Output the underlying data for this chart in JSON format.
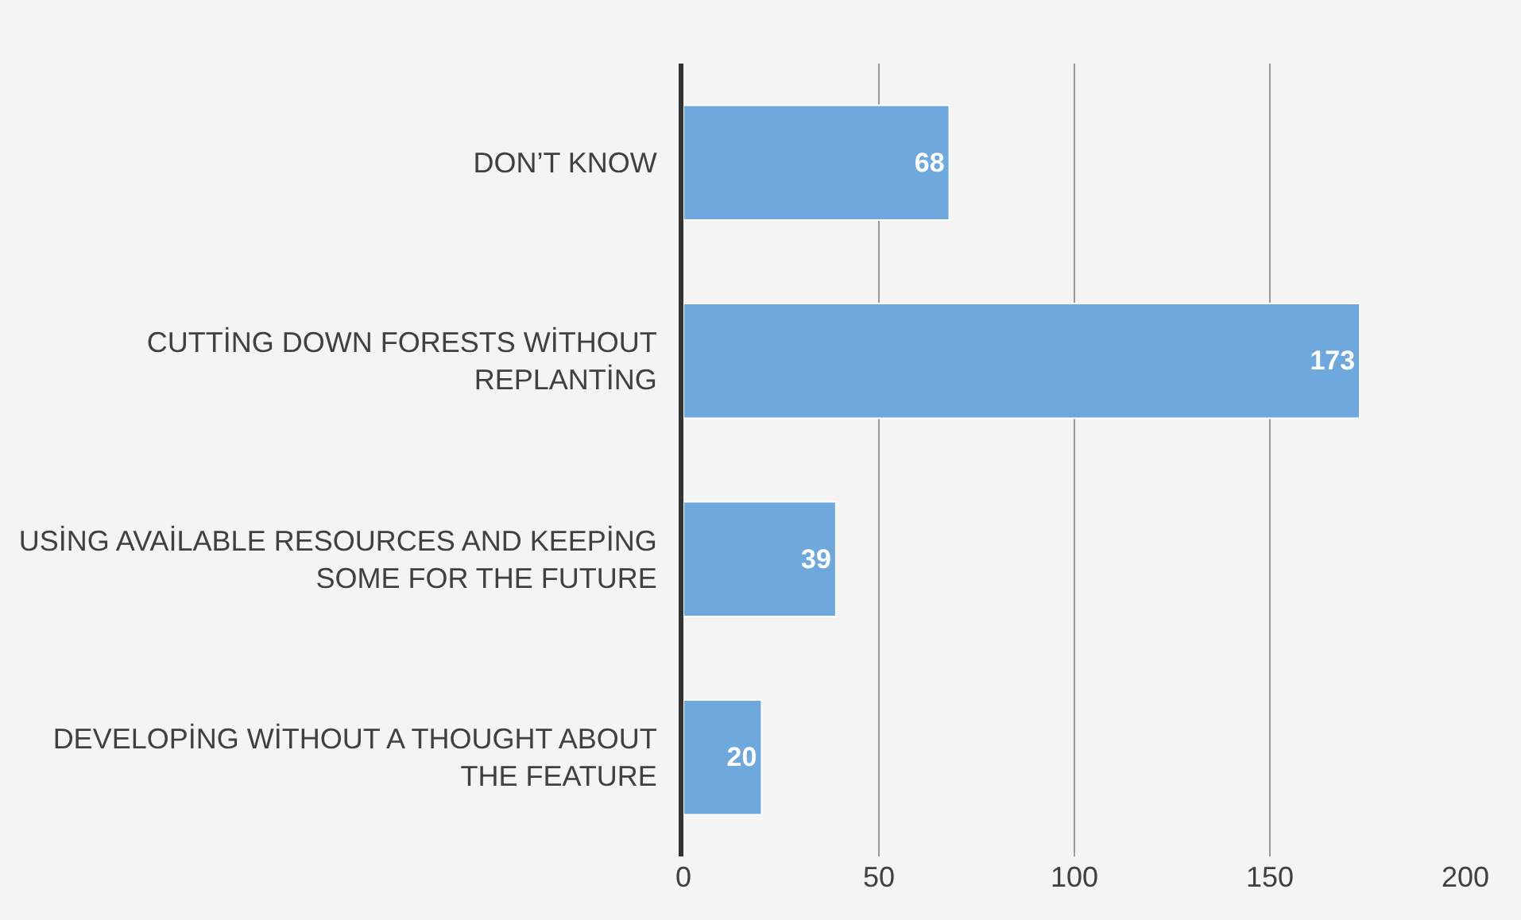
{
  "chart_data": {
    "type": "bar",
    "orientation": "horizontal",
    "categories": [
      "DON’T KNOW",
      "CUTTİNG DOWN FORESTS WİTHOUT\nREPLANTİNG",
      "USİNG AVAİLABLE RESOURCES AND KEEPİNG\nSOME FOR THE FUTURE",
      "DEVELOPİNG WİTHOUT A THOUGHT ABOUT\nTHE FEATURE"
    ],
    "values": [
      68,
      173,
      39,
      20
    ],
    "color": "#6fa8dc",
    "xlim": [
      0,
      200
    ],
    "xticks": [
      0,
      50,
      100,
      150,
      200
    ],
    "grid": "x",
    "data_labels": true,
    "legend": false
  }
}
